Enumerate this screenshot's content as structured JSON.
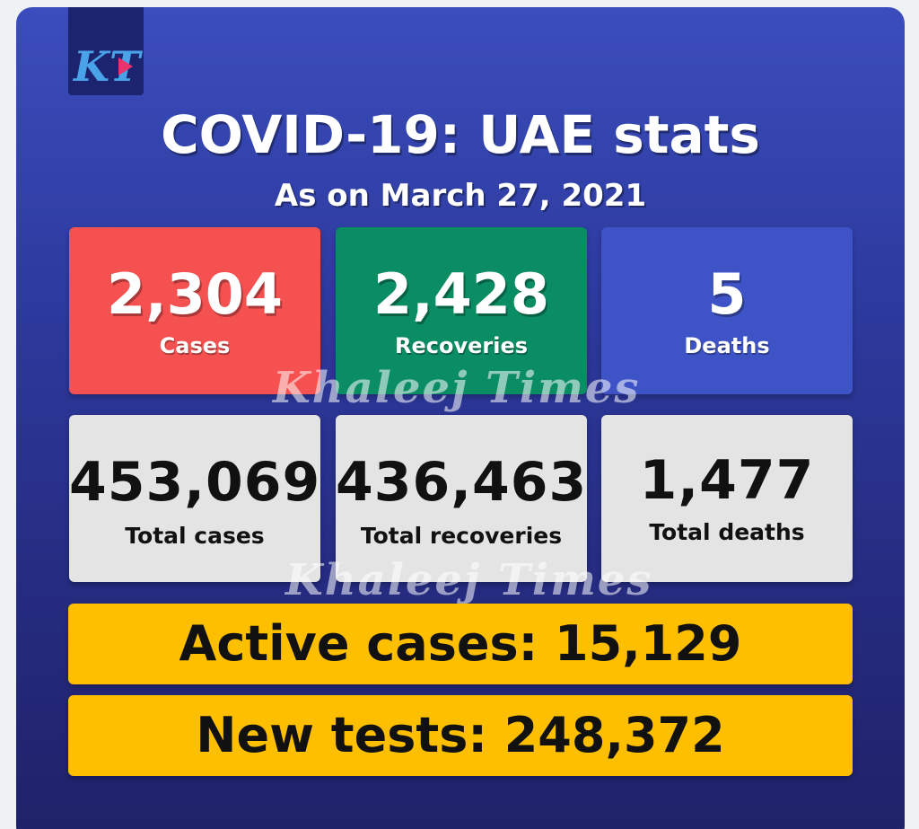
{
  "header": {
    "logo_text": "KT",
    "title": "COVID-19: UAE stats",
    "subtitle": "As on March 27, 2021"
  },
  "daily": [
    {
      "value": "2,304",
      "label": "Cases",
      "color": "#f55151"
    },
    {
      "value": "2,428",
      "label": "Recoveries",
      "color": "#0b8d64"
    },
    {
      "value": "5",
      "label": "Deaths",
      "color": "#3e53c6"
    }
  ],
  "totals": [
    {
      "value": "453,069",
      "label": "Total cases"
    },
    {
      "value": "436,463",
      "label": "Total recoveries"
    },
    {
      "value": "1,477",
      "label": "Total deaths"
    }
  ],
  "active": "Active cases: 15,129",
  "tests": "New tests: 248,372",
  "watermark": "Khaleej Times",
  "colors": {
    "background": "#2d3a9e",
    "highlight": "#fdbf00",
    "neutral_tile": "#e4e4e4"
  }
}
